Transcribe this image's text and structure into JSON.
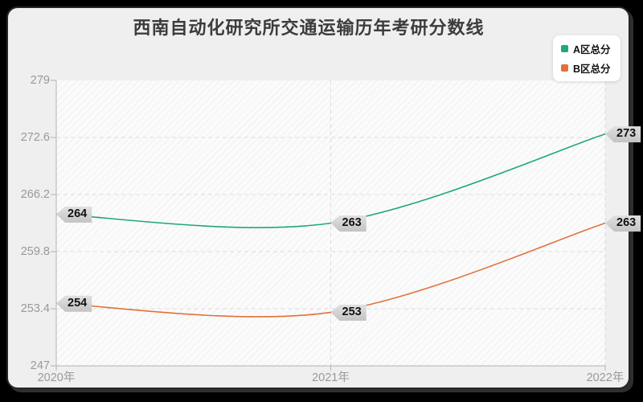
{
  "window": {
    "background": "#000000",
    "card_background": "#efefef"
  },
  "chart_data": {
    "type": "line",
    "title": "西南自动化研究所交通运输历年考研分数线",
    "categories": [
      "2020年",
      "2021年",
      "2022年"
    ],
    "series": [
      {
        "name": "A区总分",
        "color": "#1fa974",
        "values": [
          264,
          263,
          273
        ]
      },
      {
        "name": "B区总分",
        "color": "#e3703b",
        "values": [
          254,
          253,
          263
        ]
      }
    ],
    "ylim": [
      247,
      279
    ],
    "yticks": [
      247,
      253.4,
      259.8,
      266.2,
      272.6,
      279
    ],
    "smooth": true,
    "point_labels_visible": true,
    "legend_position": "top-right",
    "grid": {
      "horizontal_dashed": true,
      "vertical_dashed": true,
      "hatched_plot_background": true
    }
  }
}
